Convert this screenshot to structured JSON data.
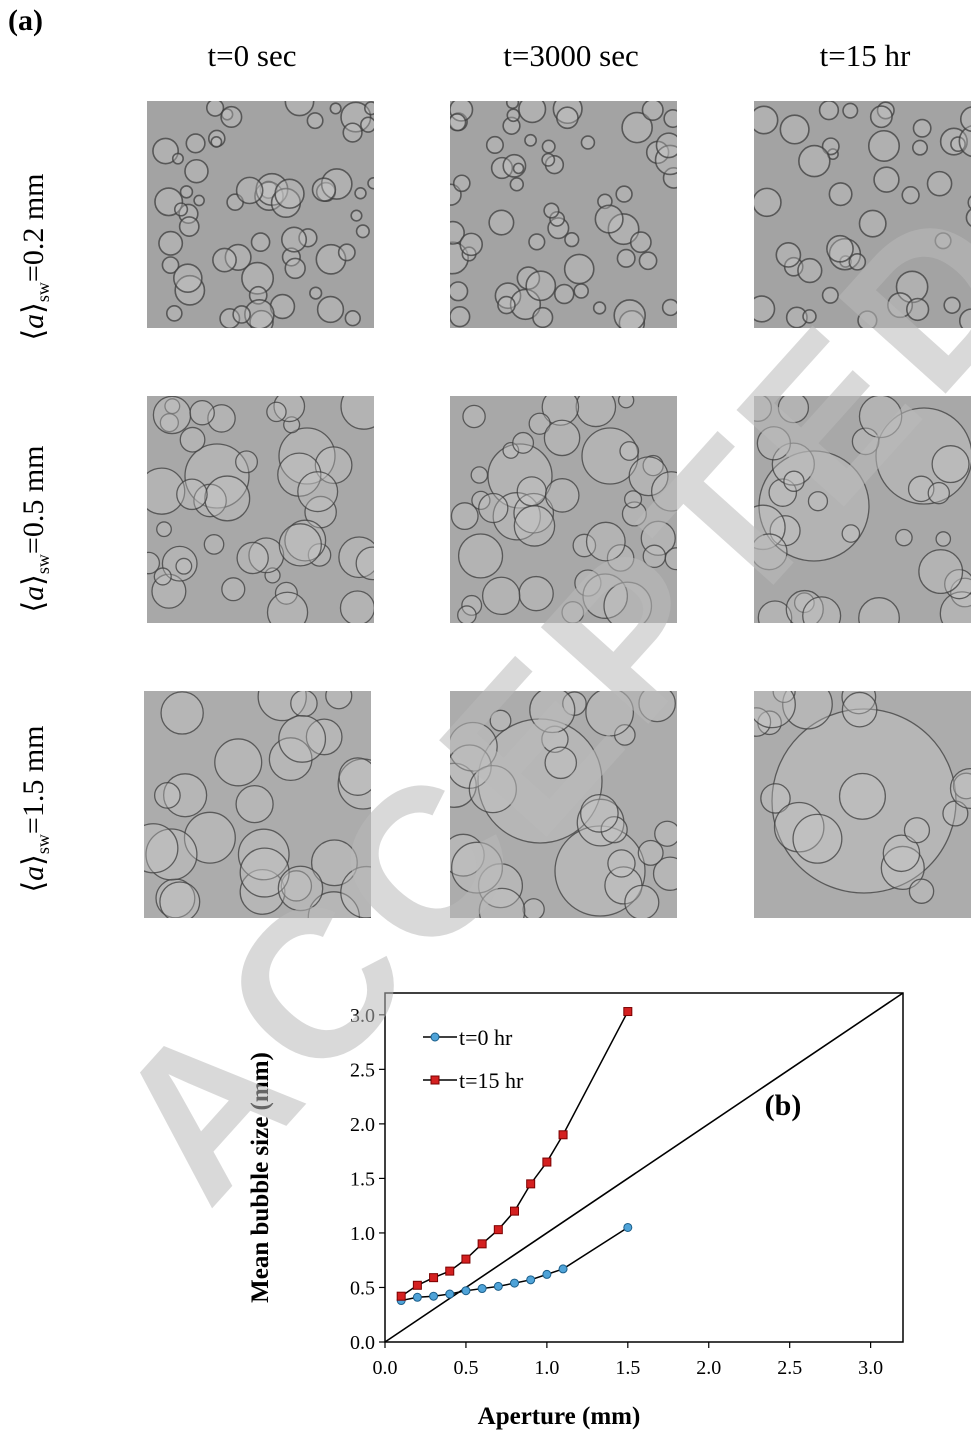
{
  "figure": {
    "panel_a_label": "(a)",
    "columns": [
      "t=0 sec",
      "t=3000 sec",
      "t=15 hr"
    ],
    "rows": [
      {
        "symbol": "a",
        "subscript": "sw",
        "value": "=0.2 mm"
      },
      {
        "symbol": "a",
        "subscript": "sw",
        "value": "=0.5 mm"
      },
      {
        "symbol": "a",
        "subscript": "sw",
        "value": "=1.5 mm"
      }
    ],
    "watermark": "ACCEPTED MANUSCRIPT"
  },
  "chart_data": {
    "type": "line",
    "panel_label": "(b)",
    "xlabel": "Aperture (mm)",
    "ylabel": "Mean bubble size (mm)",
    "xlim": [
      0,
      3.2
    ],
    "ylim": [
      0,
      3.2
    ],
    "xticks": [
      "0.0",
      "0.5",
      "1.0",
      "1.5",
      "2.0",
      "2.5",
      "3.0"
    ],
    "yticks": [
      "0.0",
      "0.5",
      "1.0",
      "1.5",
      "2.0",
      "2.5",
      "3.0"
    ],
    "legend_position": "top-left",
    "series": [
      {
        "name": "t=0 hr",
        "color": "#4fa3d8",
        "marker": "circle",
        "x": [
          0.1,
          0.2,
          0.3,
          0.4,
          0.5,
          0.6,
          0.7,
          0.8,
          0.9,
          1.0,
          1.1,
          1.5
        ],
        "y": [
          0.38,
          0.41,
          0.42,
          0.44,
          0.47,
          0.49,
          0.51,
          0.54,
          0.57,
          0.62,
          0.67,
          1.05
        ]
      },
      {
        "name": "t=15 hr",
        "color": "#d42020",
        "marker": "square",
        "x": [
          0.1,
          0.2,
          0.3,
          0.4,
          0.5,
          0.6,
          0.7,
          0.8,
          0.9,
          1.0,
          1.1,
          1.5
        ],
        "y": [
          0.42,
          0.52,
          0.59,
          0.65,
          0.76,
          0.9,
          1.03,
          1.2,
          1.45,
          1.65,
          1.9,
          3.03
        ]
      }
    ],
    "reference_line": {
      "type": "y=x",
      "color": "#000000"
    }
  }
}
